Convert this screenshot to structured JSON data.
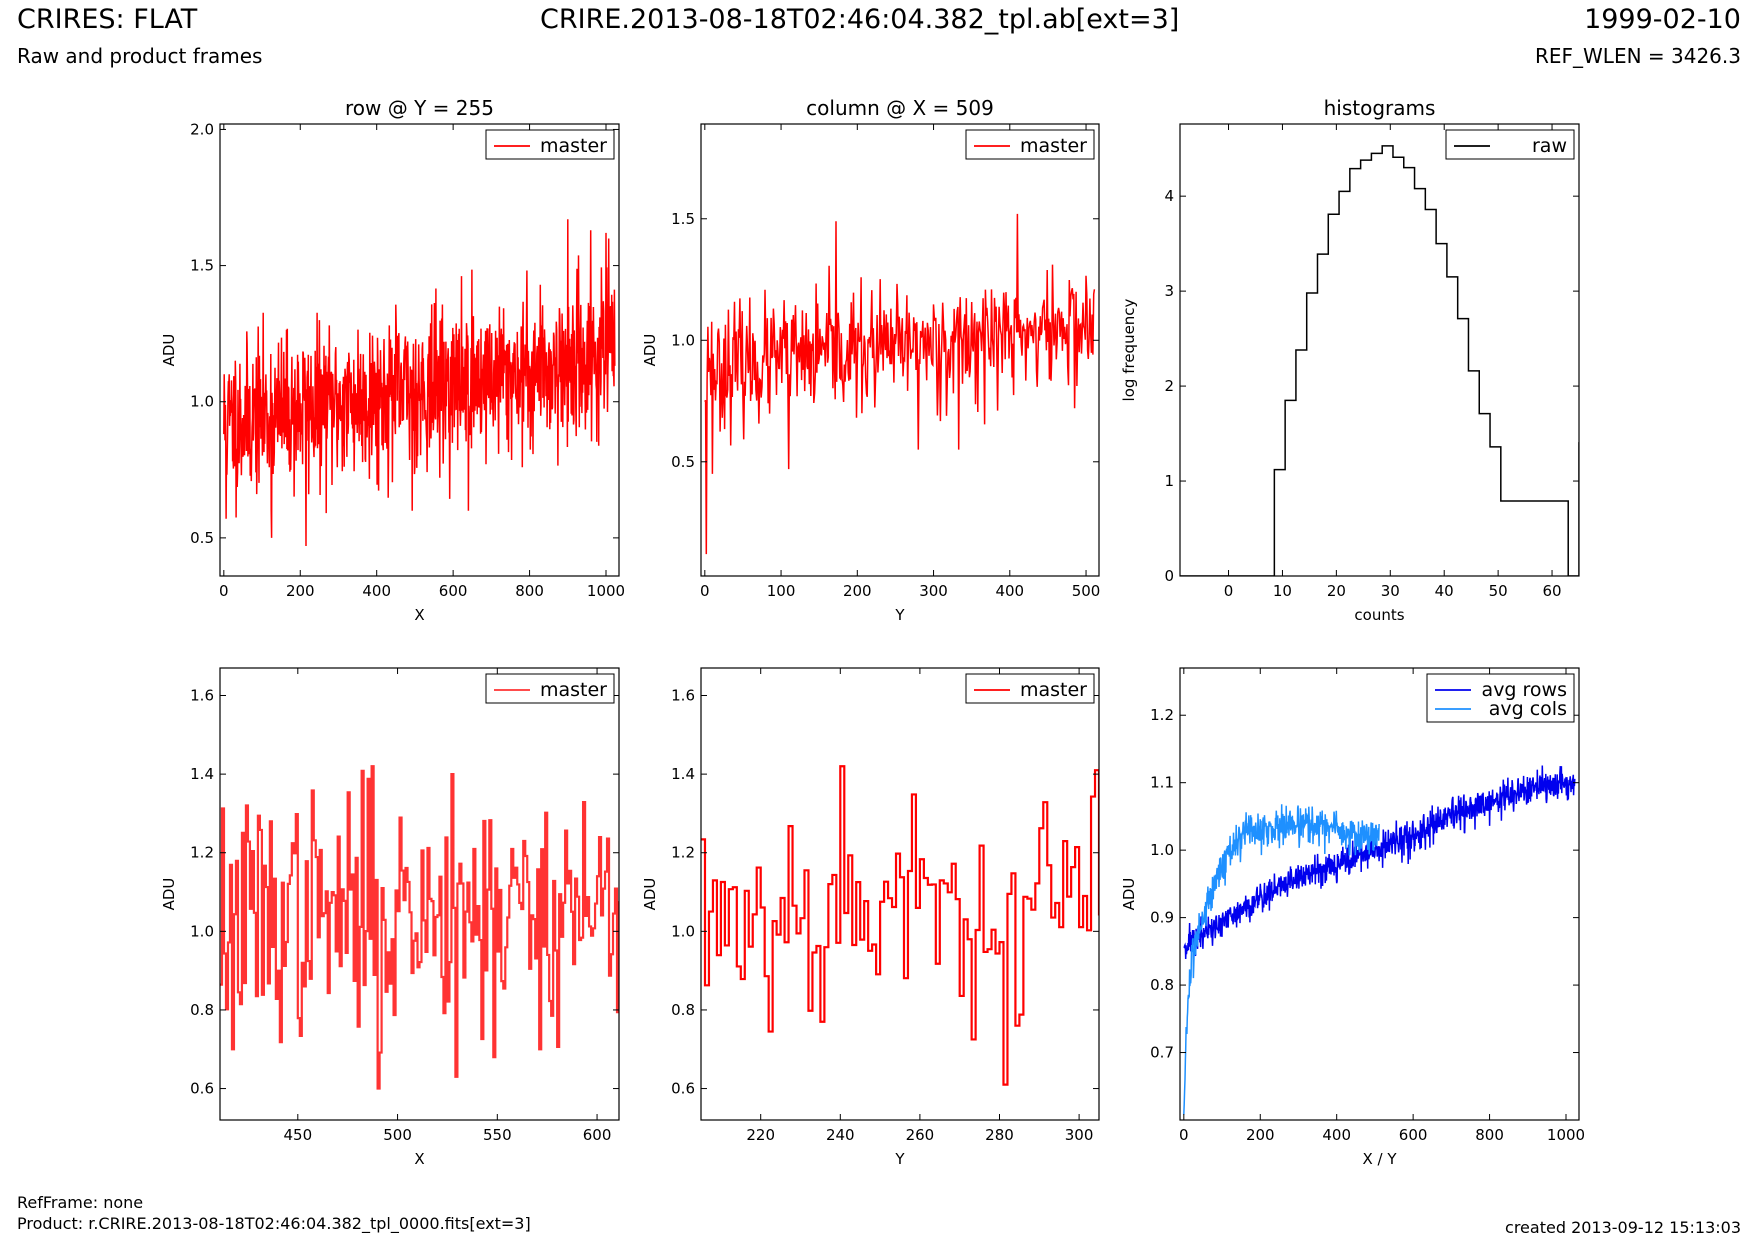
{
  "header": {
    "title_left": "CRIRES: FLAT",
    "title_center": "CRIRE.2013-08-18T02:46:04.382_tpl.ab[ext=3]",
    "title_right": "1999-02-10",
    "subtitle_left": "Raw and product frames",
    "subtitle_right": "REF_WLEN = 3426.3"
  },
  "footer": {
    "refframe": "RefFrame: none",
    "product": "Product: r.CRIRE.2013-08-18T02:46:04.382_tpl_0000.fits[ext=3]",
    "created": "created 2013-09-12 15:13:03"
  },
  "colors": {
    "master": "#ff0000",
    "master_zoom": "#ff3333",
    "raw": "#000000",
    "avg_rows": "#0000ee",
    "avg_cols": "#1e90ff"
  },
  "chart_data": [
    {
      "type": "line",
      "title": "row @ Y = 255",
      "xlabel": "X",
      "ylabel": "ADU",
      "xlim": [
        -10,
        1034
      ],
      "ylim": [
        0.36,
        2.02
      ],
      "xticks": [
        0,
        200,
        400,
        600,
        800,
        1000
      ],
      "yticks": [
        0.5,
        1.0,
        1.5,
        2.0
      ],
      "ytick_labels": [
        "0.5",
        "1.0",
        "1.5",
        "2.0"
      ],
      "legend": {
        "position": "top-right",
        "entries": [
          "master"
        ]
      },
      "series": [
        {
          "name": "master",
          "color": "#ff0000",
          "generator": "noise",
          "x_start": 0,
          "x_end": 1023,
          "n": 1024,
          "y_start": 0.92,
          "y_end": 1.17,
          "noise": 0.14,
          "seed": 11,
          "spikes": [
            [
              6,
              0.57
            ],
            [
              125,
              0.5
            ],
            [
              215,
              0.47
            ],
            [
              493,
              0.6
            ],
            [
              640,
              0.6
            ],
            [
              900,
              1.67
            ],
            [
              960,
              1.63
            ],
            [
              1000,
              1.62
            ]
          ]
        }
      ]
    },
    {
      "type": "line",
      "title": "column @ X = 509",
      "xlabel": "Y",
      "ylabel": "ADU",
      "xlim": [
        -5,
        517
      ],
      "ylim": [
        0.03,
        1.89
      ],
      "xticks": [
        0,
        100,
        200,
        300,
        400,
        500
      ],
      "yticks": [
        0.5,
        1.0,
        1.5
      ],
      "ytick_labels": [
        "0.5",
        "1.0",
        "1.5"
      ],
      "legend": {
        "position": "top-right",
        "entries": [
          "master"
        ]
      },
      "series": [
        {
          "name": "master",
          "color": "#ff0000",
          "generator": "noise",
          "x_start": 0,
          "x_end": 511,
          "n": 512,
          "y_start": 0.88,
          "y_end": 1.06,
          "noise": 0.12,
          "seed": 23,
          "spikes": [
            [
              2,
              0.12
            ],
            [
              5,
              0.87
            ],
            [
              10,
              0.45
            ],
            [
              110,
              0.47
            ],
            [
              172,
              1.49
            ],
            [
              280,
              0.55
            ],
            [
              333,
              0.55
            ],
            [
              410,
              1.52
            ]
          ]
        }
      ]
    },
    {
      "type": "line",
      "subtype": "step-histogram",
      "title": "histograms",
      "xlabel": "counts",
      "ylabel": "log frequency",
      "xlim": [
        -9,
        65
      ],
      "ylim": [
        0,
        4.76
      ],
      "xticks": [
        0,
        10,
        20,
        30,
        40,
        50,
        60
      ],
      "yticks": [
        0,
        1,
        2,
        3,
        4
      ],
      "ytick_labels": [
        "0",
        "1",
        "2",
        "3",
        "4"
      ],
      "legend": {
        "position": "top-right",
        "entries": [
          "raw"
        ]
      },
      "series": [
        {
          "name": "raw",
          "color": "#000000",
          "bin_edges": [
            -9,
            8.5,
            10.5,
            12.5,
            14.5,
            16.5,
            18.5,
            20.5,
            22.5,
            24.5,
            26.5,
            28.5,
            30.5,
            32.5,
            34.5,
            36.5,
            38.5,
            40.5,
            42.5,
            44.5,
            46.5,
            48.5,
            50.5,
            63,
            65
          ],
          "counts": [
            0,
            1.12,
            1.85,
            2.38,
            2.98,
            3.39,
            3.81,
            4.05,
            4.29,
            4.38,
            4.45,
            4.53,
            4.41,
            4.3,
            4.08,
            3.86,
            3.5,
            3.15,
            2.71,
            2.16,
            1.71,
            1.36,
            0.79,
            0,
            1.41
          ]
        }
      ]
    },
    {
      "type": "line",
      "subtype": "step",
      "xlabel": "X",
      "ylabel": "ADU",
      "xlim": [
        411,
        611
      ],
      "ylim": [
        0.52,
        1.67
      ],
      "xticks": [
        450,
        500,
        550,
        600
      ],
      "yticks": [
        0.6,
        0.8,
        1.0,
        1.2,
        1.4,
        1.6
      ],
      "ytick_labels": [
        "0.6",
        "0.8",
        "1.0",
        "1.2",
        "1.4",
        "1.6"
      ],
      "legend": {
        "position": "top-right",
        "entries": [
          "master"
        ]
      },
      "series": [
        {
          "name": "master",
          "color": "#ff3333",
          "generator": "noise",
          "x_start": 411,
          "x_end": 611,
          "n": 201,
          "y_start": 1.03,
          "y_end": 1.07,
          "noise": 0.15,
          "seed": 37,
          "spikes": [
            [
              417,
              0.7
            ],
            [
              487,
              1.42
            ],
            [
              490,
              0.6
            ],
            [
              527,
              1.4
            ],
            [
              529,
              0.63
            ],
            [
              548,
              0.68
            ],
            [
              571,
              0.7
            ]
          ]
        }
      ]
    },
    {
      "type": "line",
      "subtype": "step",
      "xlabel": "Y",
      "ylabel": "ADU",
      "xlim": [
        205,
        305
      ],
      "ylim": [
        0.52,
        1.67
      ],
      "xticks": [
        220,
        240,
        260,
        280,
        300
      ],
      "yticks": [
        0.6,
        0.8,
        1.0,
        1.2,
        1.4,
        1.6
      ],
      "ytick_labels": [
        "0.6",
        "0.8",
        "1.0",
        "1.2",
        "1.4",
        "1.6"
      ],
      "legend": {
        "position": "top-right",
        "entries": [
          "master"
        ]
      },
      "series": [
        {
          "name": "master",
          "color": "#ff0000",
          "generator": "noise",
          "x_start": 205,
          "x_end": 305,
          "n": 101,
          "y_start": 1.05,
          "y_end": 1.08,
          "noise": 0.13,
          "seed": 53,
          "spikes": [
            [
              235,
              0.77
            ],
            [
              240,
              1.42
            ],
            [
              281,
              0.61
            ],
            [
              284,
              0.76
            ],
            [
              304,
              1.41
            ]
          ]
        }
      ]
    },
    {
      "type": "line",
      "xlabel": "X / Y",
      "ylabel": "ADU",
      "xlim": [
        -10,
        1034
      ],
      "ylim": [
        0.6,
        1.27
      ],
      "xticks": [
        0,
        200,
        400,
        600,
        800,
        1000
      ],
      "yticks": [
        0.7,
        0.8,
        0.9,
        1.0,
        1.1,
        1.2
      ],
      "ytick_labels": [
        "0.7",
        "0.8",
        "0.9",
        "1.0",
        "1.1",
        "1.2"
      ],
      "legend": {
        "position": "top-right",
        "entries": [
          "avg rows",
          "avg cols"
        ]
      },
      "series": [
        {
          "name": "avg rows",
          "color": "#0000ee",
          "generator": "trend",
          "x_start": 0,
          "x_end": 1023,
          "n": 1024,
          "points": [
            [
              0,
              0.86
            ],
            [
              100,
              0.89
            ],
            [
              200,
              0.93
            ],
            [
              300,
              0.96
            ],
            [
              400,
              0.98
            ],
            [
              500,
              1.0
            ],
            [
              600,
              1.02
            ],
            [
              700,
              1.05
            ],
            [
              800,
              1.07
            ],
            [
              900,
              1.09
            ],
            [
              1023,
              1.1
            ]
          ],
          "noise": 0.012,
          "seed": 71
        },
        {
          "name": "avg cols",
          "color": "#1e90ff",
          "generator": "trend",
          "x_start": 0,
          "x_end": 511,
          "n": 512,
          "points": [
            [
              0,
              0.6
            ],
            [
              5,
              0.72
            ],
            [
              15,
              0.8
            ],
            [
              30,
              0.86
            ],
            [
              60,
              0.92
            ],
            [
              100,
              0.98
            ],
            [
              150,
              1.02
            ],
            [
              200,
              1.03
            ],
            [
              300,
              1.04
            ],
            [
              400,
              1.03
            ],
            [
              450,
              1.02
            ],
            [
              511,
              1.02
            ]
          ],
          "noise": 0.014,
          "seed": 83
        }
      ]
    }
  ]
}
